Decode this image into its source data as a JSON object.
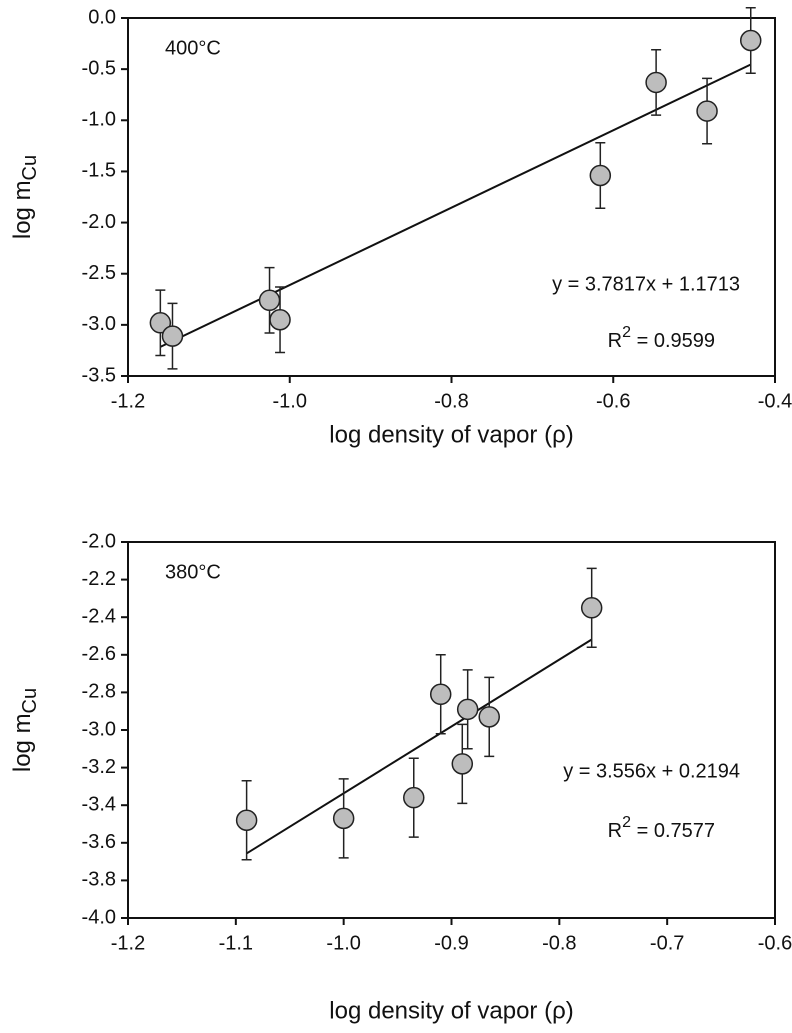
{
  "chart_data": [
    {
      "type": "scatter",
      "label": "400°C",
      "equation": "y = 3.7817x + 1.1713",
      "r2": {
        "base": "R",
        "sup": "2",
        "rest": " = 0.9599"
      },
      "xlabel": "log density of vapor (ρ)",
      "ylabel": {
        "base": "log m",
        "sub": "Cu"
      },
      "x": [
        -1.16,
        -1.145,
        -1.025,
        -1.012,
        -0.616,
        -0.547,
        -0.484,
        -0.43
      ],
      "y": [
        -2.98,
        -3.11,
        -2.76,
        -2.95,
        -1.54,
        -0.63,
        -0.91,
        -0.22
      ],
      "errors": [
        0.32,
        0.32,
        0.32,
        0.32,
        0.32,
        0.32,
        0.32,
        0.32
      ],
      "trendline": {
        "slope": 3.7817,
        "intercept": 1.1713,
        "x": [
          -1.16,
          -0.43
        ]
      },
      "color": "#bdbdbd",
      "xlim": [
        -1.2,
        -0.4
      ],
      "ylim": [
        -3.5,
        0
      ],
      "xticks": [
        -1.2,
        {
          "value": -1.0,
          "label": "-1.0"
        },
        -0.8,
        -0.6,
        -0.4
      ],
      "yticks": [
        {
          "value": 0,
          "label": "0.0"
        },
        -0.5,
        {
          "value": -1.0,
          "label": "-1.0"
        },
        -1.5,
        {
          "value": -2.0,
          "label": "-2.0"
        },
        -2.5,
        {
          "value": -3.0,
          "label": "-3.0"
        },
        -3.5
      ]
    },
    {
      "type": "scatter",
      "label": "380°C",
      "equation": "y = 3.556x + 0.2194",
      "r2": {
        "base": "R",
        "sup": "2",
        "rest": " = 0.7577"
      },
      "xlabel": "log density of vapor (ρ)",
      "ylabel": {
        "base": "log m",
        "sub": "Cu"
      },
      "x": [
        -1.09,
        -1.0,
        -0.935,
        -0.91,
        -0.885,
        -0.89,
        -0.865,
        -0.77
      ],
      "y": [
        -3.48,
        -3.47,
        -3.36,
        -2.81,
        -2.89,
        -3.18,
        -2.93,
        -2.35
      ],
      "errors": [
        0.21,
        0.21,
        0.21,
        0.21,
        0.21,
        0.21,
        0.21,
        0.21
      ],
      "trendline": {
        "slope": 3.556,
        "intercept": 0.2194,
        "x": [
          -1.09,
          -0.77
        ]
      },
      "color": "#bdbdbd",
      "xlim": [
        -1.2,
        -0.6
      ],
      "ylim": [
        -4.0,
        -2.0
      ],
      "xticks": [
        -1.2,
        -1.1,
        {
          "value": -1.0,
          "label": "-1.0"
        },
        -0.9,
        -0.8,
        -0.7,
        -0.6
      ],
      "yticks": [
        {
          "value": -2.0,
          "label": "-2.0"
        },
        -2.2,
        -2.4,
        -2.6,
        -2.8,
        {
          "value": -3.0,
          "label": "-3.0"
        },
        -3.2,
        -3.4,
        -3.6,
        -3.8,
        {
          "value": -4.0,
          "label": "-4.0"
        }
      ]
    }
  ]
}
